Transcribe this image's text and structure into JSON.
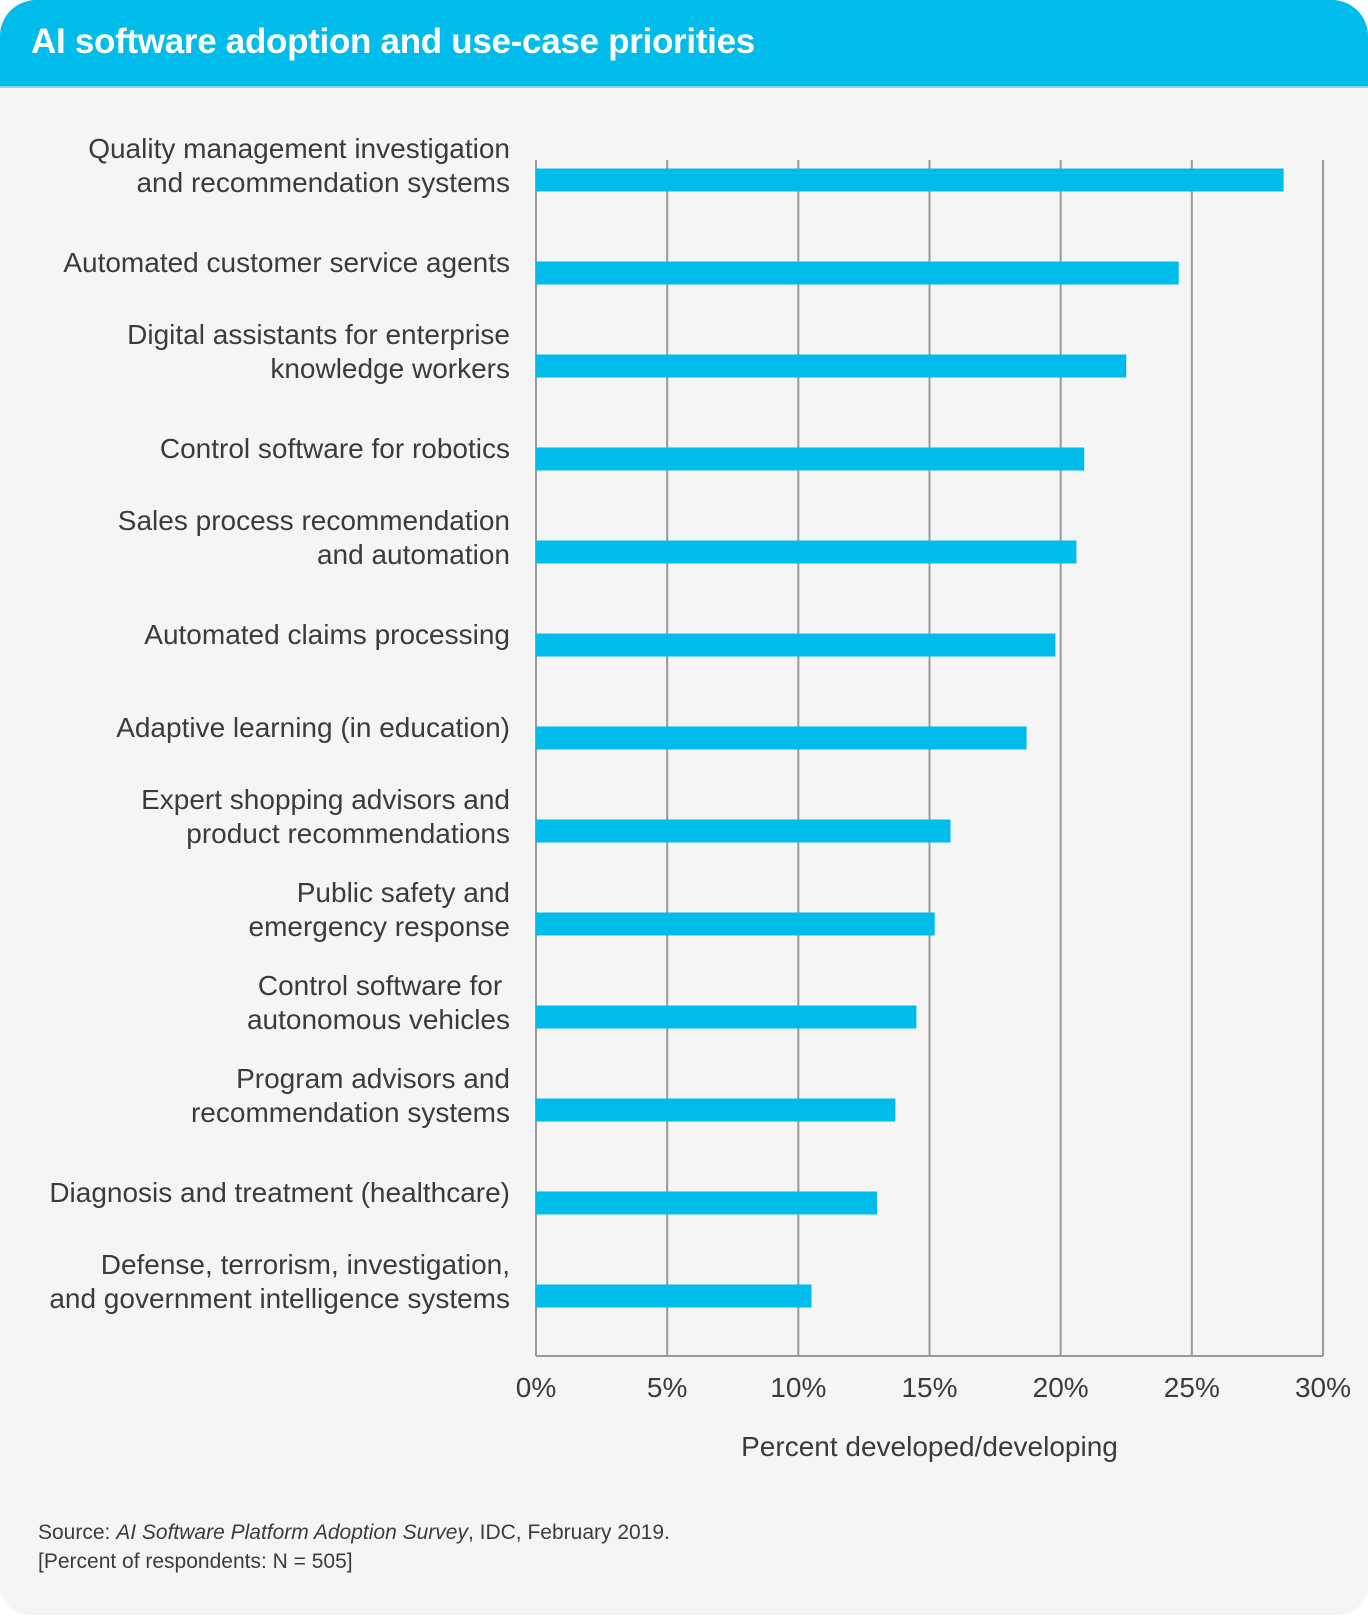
{
  "header": {
    "title": "AI software adoption and use-case priorities"
  },
  "chart_data": {
    "type": "bar",
    "orientation": "horizontal",
    "title": "AI software adoption and use-case priorities",
    "categories": [
      [
        "Quality management investigation",
        "and recommendation systems"
      ],
      [
        "Automated customer service agents"
      ],
      [
        "Digital assistants for enterprise",
        "knowledge workers"
      ],
      [
        "Control software for robotics"
      ],
      [
        "Sales process recommendation",
        "and automation"
      ],
      [
        "Automated claims processing"
      ],
      [
        "Adaptive learning (in education)"
      ],
      [
        "Expert shopping advisors and",
        "product recommendations"
      ],
      [
        "Public safety and",
        "emergency response"
      ],
      [
        "Control software for ",
        "autonomous vehicles"
      ],
      [
        "Program advisors and",
        "recommendation systems"
      ],
      [
        "Diagnosis and treatment (healthcare)"
      ],
      [
        "Defense, terrorism, investigation,",
        "and government intelligence systems"
      ]
    ],
    "values": [
      28.5,
      24.5,
      22.5,
      20.9,
      20.6,
      19.8,
      18.7,
      15.8,
      15.2,
      14.5,
      13.7,
      13.0,
      10.5
    ],
    "xlabel": "Percent developed/developing",
    "xlim": [
      0,
      30
    ],
    "xticks": [
      "0%",
      "5%",
      "10%",
      "15%",
      "20%",
      "25%",
      "30%"
    ],
    "grid": true,
    "bar_color": "#00bceb"
  },
  "source": {
    "prefix": "Source: ",
    "title": "AI Software Platform Adoption Survey",
    "suffix": ", IDC, February 2019.",
    "note": "[Percent of respondents: N = 505]"
  }
}
